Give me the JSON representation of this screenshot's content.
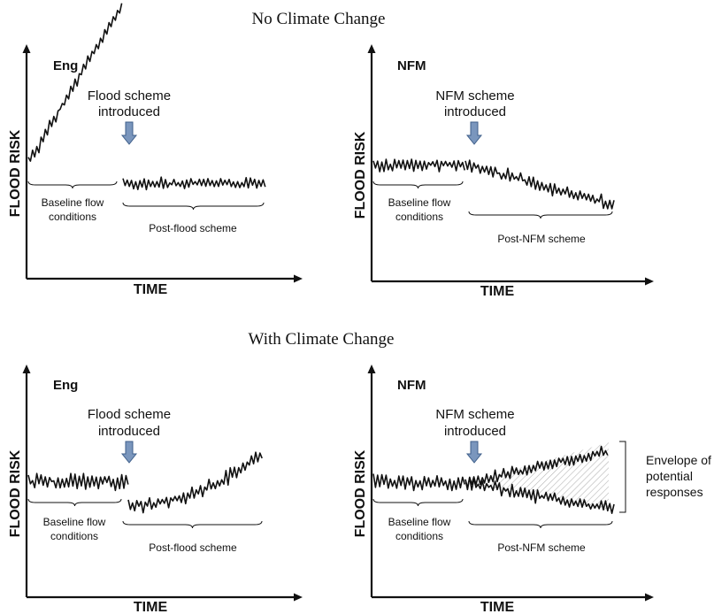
{
  "sections": [
    {
      "title": "No Climate Change",
      "panels": [
        {
          "tag": "Eng",
          "scheme_line1": "Flood scheme",
          "scheme_line2": "introduced",
          "y_axis": "FLOOD RISK",
          "x_axis": "TIME",
          "baseline_line1": "Baseline flow",
          "baseline_line2": "conditions",
          "post_label": "Post-flood scheme"
        },
        {
          "tag": "NFM",
          "scheme_line1": "NFM scheme",
          "scheme_line2": "introduced",
          "y_axis": "FLOOD RISK",
          "x_axis": "TIME",
          "baseline_line1": "Baseline flow",
          "baseline_line2": "conditions",
          "post_label": "Post-NFM scheme"
        }
      ]
    },
    {
      "title": "With Climate Change",
      "panels": [
        {
          "tag": "Eng",
          "scheme_line1": "Flood scheme",
          "scheme_line2": "introduced",
          "y_axis": "FLOOD RISK",
          "x_axis": "TIME",
          "baseline_line1": "Baseline flow",
          "baseline_line2": "conditions",
          "post_label": "Post-flood scheme"
        },
        {
          "tag": "NFM",
          "scheme_line1": "NFM scheme",
          "scheme_line2": "introduced",
          "y_axis": "FLOOD RISK",
          "x_axis": "TIME",
          "baseline_line1": "Baseline flow",
          "baseline_line2": "conditions",
          "post_label": "Post-NFM scheme",
          "envelope_line1": "Envelope of",
          "envelope_line2": "potential",
          "envelope_line3": "responses"
        }
      ]
    }
  ],
  "colors": {
    "arrow_fill": "#7a96bd",
    "arrow_stroke": "#3f5f8a",
    "envelope_hatch": "#b5b5b5",
    "trace": "#111111"
  }
}
